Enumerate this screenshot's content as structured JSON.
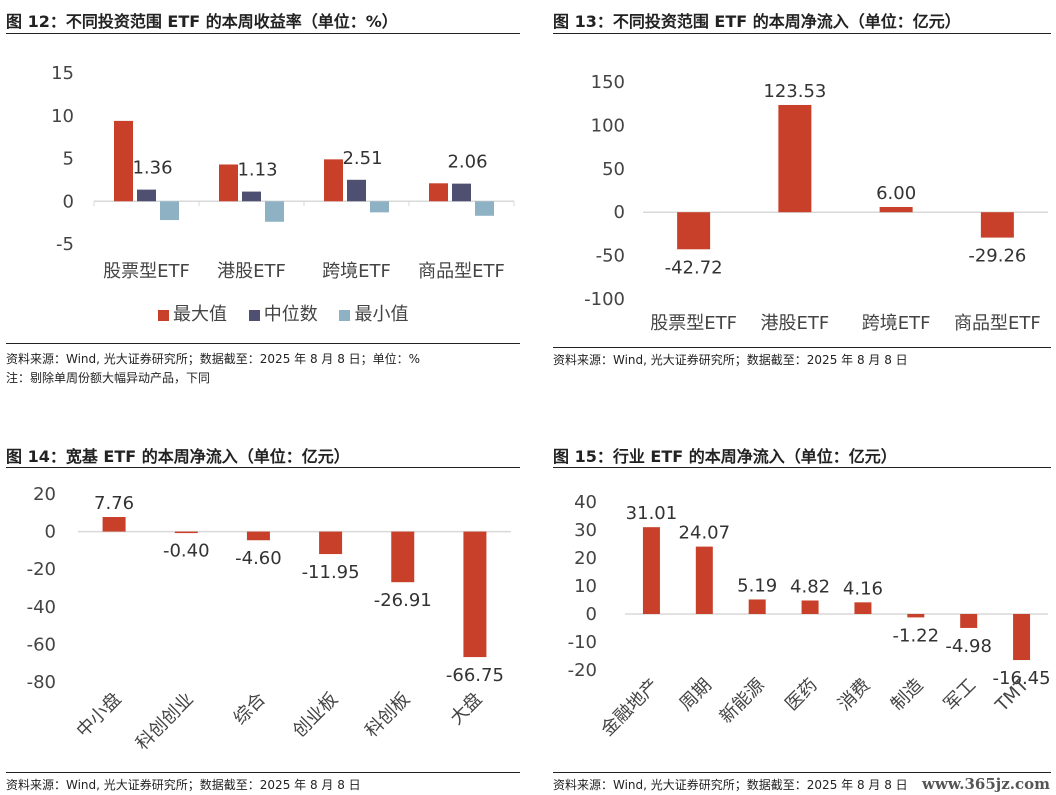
{
  "panels": [
    {
      "title": "图 12：不同投资范围 ETF 的本周收益率（单位：%）",
      "source": "资料来源：Wind, 光大证券研究所；数据截至：2025 年 8 月 8 日；单位：%",
      "note": "注：剔除单周份额大幅异动产品，下同"
    },
    {
      "title": "图 13：不同投资范围 ETF 的本周净流入（单位：亿元）",
      "source": "资料来源：Wind, 光大证券研究所；数据截至：2025 年 8 月 8 日"
    },
    {
      "title": "图 14：宽基 ETF 的本周净流入（单位：亿元）",
      "source": "资料来源：Wind, 光大证券研究所；数据截至：2025 年 8 月 8 日"
    },
    {
      "title": "图 15：行业 ETF 的本周净流入（单位：亿元）",
      "source": "资料来源：Wind, 光大证券研究所；数据截至：2025 年 8 月 8 日"
    }
  ],
  "watermark": "www.365jz.com",
  "colors": {
    "red": "#c9402a",
    "navy": "#4f4f72",
    "lightblue": "#8eb2c4",
    "axis": "#d9d9d9"
  },
  "chart_data": [
    {
      "type": "bar",
      "categories": [
        "股票型ETF",
        "港股ETF",
        "跨境ETF",
        "商品型ETF"
      ],
      "series": [
        {
          "name": "最大值",
          "values": [
            9.4,
            4.3,
            4.9,
            2.1
          ]
        },
        {
          "name": "中位数",
          "values": [
            1.36,
            1.13,
            2.51,
            2.06
          ]
        },
        {
          "name": "最小值",
          "values": [
            -2.2,
            -2.4,
            -1.3,
            -1.7
          ]
        }
      ],
      "data_labels": [
        "1.36",
        "1.13",
        "2.51",
        "2.06"
      ],
      "yticks": [
        "15",
        "10",
        "5",
        "0",
        "-5"
      ],
      "ylim": [
        -5,
        15
      ],
      "legend": "bottom"
    },
    {
      "type": "bar",
      "categories": [
        "股票型ETF",
        "港股ETF",
        "跨境ETF",
        "商品型ETF"
      ],
      "values": [
        -42.72,
        123.53,
        6.0,
        -29.26
      ],
      "data_labels": [
        "-42.72",
        "123.53",
        "6.00",
        "-29.26"
      ],
      "yticks": [
        "150",
        "100",
        "50",
        "0",
        "-50",
        "-100"
      ],
      "ylim": [
        -100,
        150
      ]
    },
    {
      "type": "bar",
      "categories": [
        "中小盘",
        "科创创业",
        "综合",
        "创业板",
        "科创板",
        "大盘"
      ],
      "values": [
        7.76,
        -0.4,
        -4.6,
        -11.95,
        -26.91,
        -66.75
      ],
      "data_labels": [
        "7.76",
        "-0.40",
        "-4.60",
        "-11.95",
        "-26.91",
        "-66.75"
      ],
      "yticks": [
        "20",
        "0",
        "-20",
        "-40",
        "-60",
        "-80"
      ],
      "ylim": [
        -80,
        20
      ]
    },
    {
      "type": "bar",
      "categories": [
        "金融地产",
        "周期",
        "新能源",
        "医药",
        "消费",
        "制造",
        "军工",
        "TMT"
      ],
      "values": [
        31.01,
        24.07,
        5.19,
        4.82,
        4.16,
        -1.22,
        -4.98,
        -16.45
      ],
      "data_labels": [
        "31.01",
        "24.07",
        "5.19",
        "4.82",
        "4.16",
        "-1.22",
        "-4.98",
        "-16.45"
      ],
      "yticks": [
        "40",
        "30",
        "20",
        "10",
        "0",
        "-10",
        "-20"
      ],
      "ylim": [
        -20,
        40
      ]
    }
  ]
}
